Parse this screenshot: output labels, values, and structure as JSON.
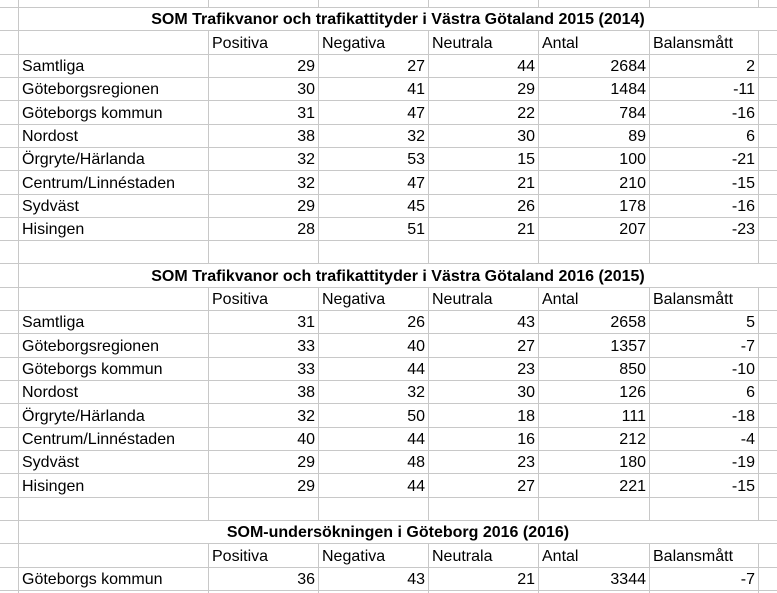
{
  "columns": [
    "Positiva",
    "Negativa",
    "Neutrala",
    "Antal",
    "Balansmått"
  ],
  "sections": [
    {
      "title": "SOM Trafikvanor och trafikattityder i Västra Götaland 2015 (2014)",
      "rows": [
        {
          "label": "Samtliga",
          "values": [
            "29",
            "27",
            "44",
            "2684",
            "2"
          ]
        },
        {
          "label": "Göteborgsregionen",
          "values": [
            "30",
            "41",
            "29",
            "1484",
            "-11"
          ]
        },
        {
          "label": "Göteborgs kommun",
          "values": [
            "31",
            "47",
            "22",
            "784",
            "-16"
          ]
        },
        {
          "label": "Nordost",
          "values": [
            "38",
            "32",
            "30",
            "89",
            "6"
          ]
        },
        {
          "label": "Örgryte/Härlanda",
          "values": [
            "32",
            "53",
            "15",
            "100",
            "-21"
          ]
        },
        {
          "label": "Centrum/Linnéstaden",
          "values": [
            "32",
            "47",
            "21",
            "210",
            "-15"
          ]
        },
        {
          "label": "Sydväst",
          "values": [
            "29",
            "45",
            "26",
            "178",
            "-16"
          ]
        },
        {
          "label": "Hisingen",
          "values": [
            "28",
            "51",
            "21",
            "207",
            "-23"
          ]
        }
      ]
    },
    {
      "title": "SOM Trafikvanor och trafikattityder i Västra Götaland 2016 (2015)",
      "rows": [
        {
          "label": "Samtliga",
          "values": [
            "31",
            "26",
            "43",
            "2658",
            "5"
          ]
        },
        {
          "label": "Göteborgsregionen",
          "values": [
            "33",
            "40",
            "27",
            "1357",
            "-7"
          ]
        },
        {
          "label": "Göteborgs kommun",
          "values": [
            "33",
            "44",
            "23",
            "850",
            "-10"
          ]
        },
        {
          "label": "Nordost",
          "values": [
            "38",
            "32",
            "30",
            "126",
            "6"
          ]
        },
        {
          "label": "Örgryte/Härlanda",
          "values": [
            "32",
            "50",
            "18",
            "111",
            "-18"
          ]
        },
        {
          "label": "Centrum/Linnéstaden",
          "values": [
            "40",
            "44",
            "16",
            "212",
            "-4"
          ]
        },
        {
          "label": "Sydväst",
          "values": [
            "29",
            "48",
            "23",
            "180",
            "-19"
          ]
        },
        {
          "label": "Hisingen",
          "values": [
            "29",
            "44",
            "27",
            "221",
            "-15"
          ]
        }
      ]
    },
    {
      "title": "SOM-undersökningen i Göteborg 2016 (2016)",
      "rows": [
        {
          "label": "Göteborgs kommun",
          "values": [
            "36",
            "43",
            "21",
            "3344",
            "-7"
          ]
        }
      ]
    }
  ],
  "colors": {
    "background": "#ffffff",
    "gridline": "#c8c8c8",
    "text": "#000000"
  }
}
